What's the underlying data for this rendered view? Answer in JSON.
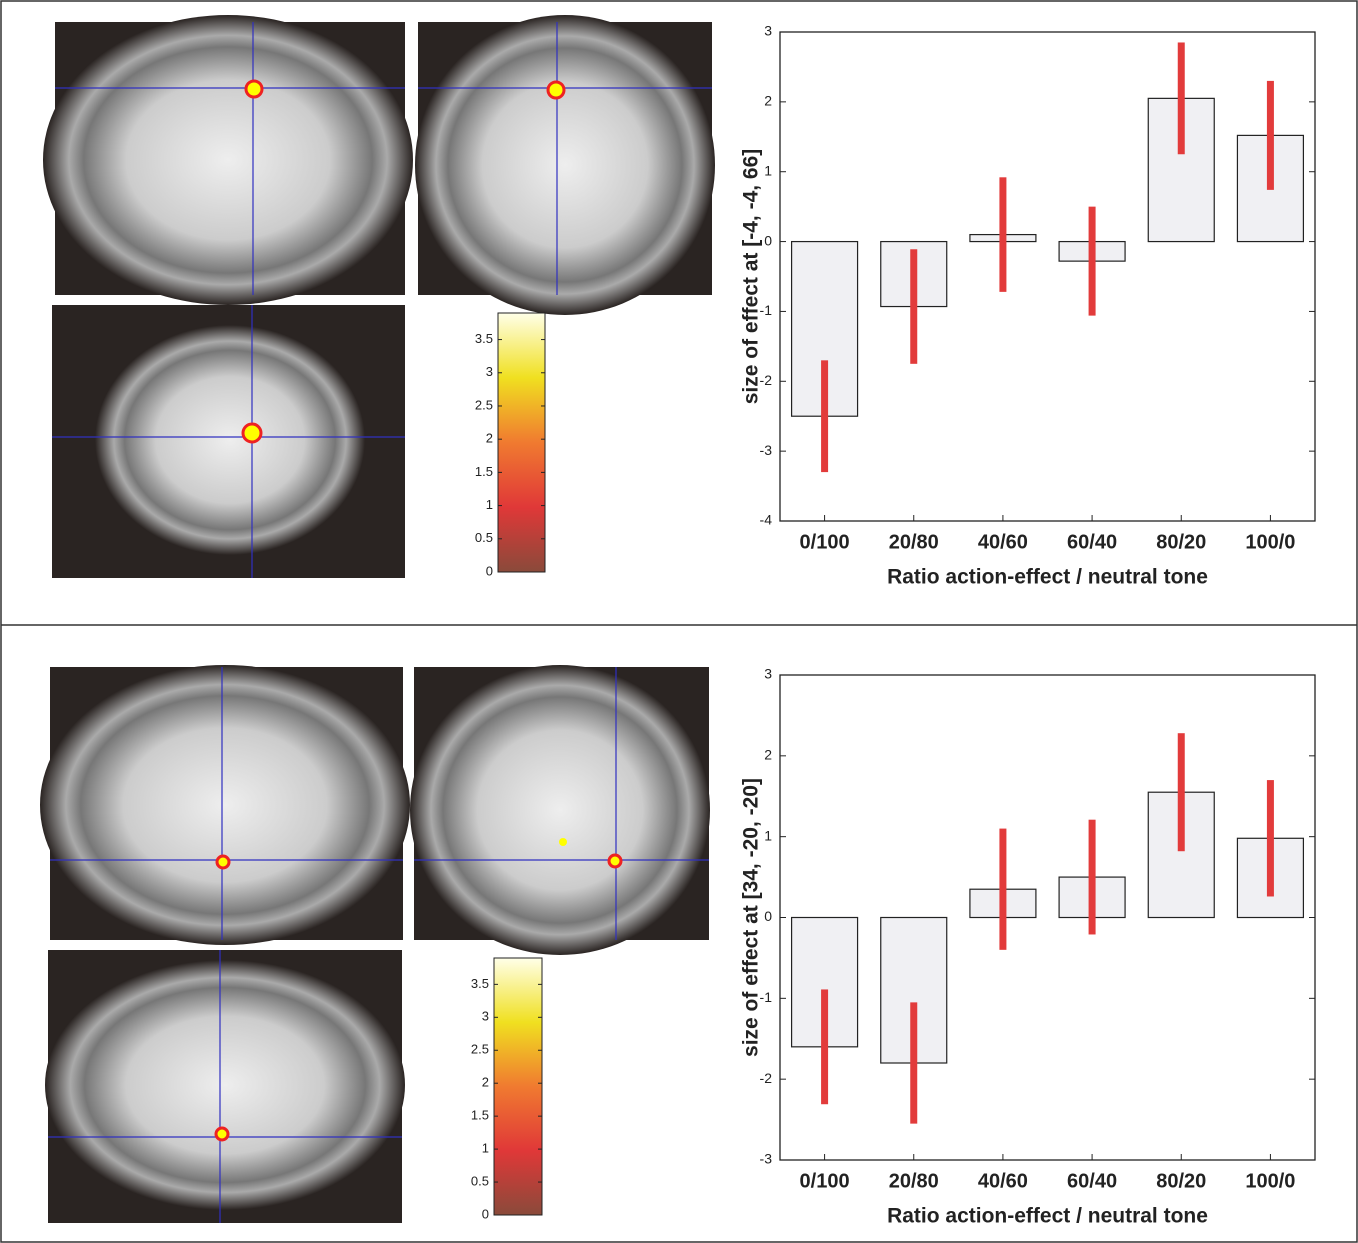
{
  "chart_data": [
    {
      "type": "bar",
      "categories": [
        "0/100",
        "20/80",
        "40/60",
        "60/40",
        "80/20",
        "100/0"
      ],
      "values": [
        -2.5,
        -0.93,
        0.1,
        -0.28,
        2.05,
        1.52
      ],
      "errors": [
        0.8,
        0.82,
        0.82,
        0.78,
        0.8,
        0.78
      ],
      "ylabel": "size of effect at [-4, -4, 66]",
      "xlabel": "Ratio action-effect / neutral tone",
      "ylim": [
        -4,
        3
      ],
      "yticks": [
        -4,
        -3,
        -2,
        -1,
        0,
        1,
        2,
        3
      ],
      "color": "#f0f0f3",
      "error_color": "#e23b3b"
    },
    {
      "type": "colorbar",
      "ylim": [
        0,
        3.9
      ],
      "yticks": [
        0,
        0.5,
        1,
        1.5,
        2,
        2.5,
        3,
        3.5
      ],
      "colors": [
        "#8a4a3a",
        "#e03838",
        "#f07a30",
        "#f0e020",
        "#ffffe8"
      ]
    },
    {
      "type": "bar",
      "categories": [
        "0/100",
        "20/80",
        "40/60",
        "60/40",
        "80/20",
        "100/0"
      ],
      "values": [
        -1.6,
        -1.8,
        0.35,
        0.5,
        1.55,
        0.98
      ],
      "errors": [
        0.71,
        0.75,
        0.75,
        0.71,
        0.73,
        0.72
      ],
      "ylabel": "size of effect at [34, -20, -20]",
      "xlabel": "Ratio action-effect / neutral tone",
      "ylim": [
        -3,
        3
      ],
      "yticks": [
        -3,
        -2,
        -1,
        0,
        1,
        2,
        3
      ],
      "color": "#f0f0f3",
      "error_color": "#e23b3b"
    },
    {
      "type": "colorbar",
      "ylim": [
        0,
        3.9
      ],
      "yticks": [
        0,
        0.5,
        1,
        1.5,
        2,
        2.5,
        3,
        3.5
      ],
      "colors": [
        "#8a4a3a",
        "#e03838",
        "#f07a30",
        "#f0e020",
        "#ffffe8"
      ]
    }
  ]
}
